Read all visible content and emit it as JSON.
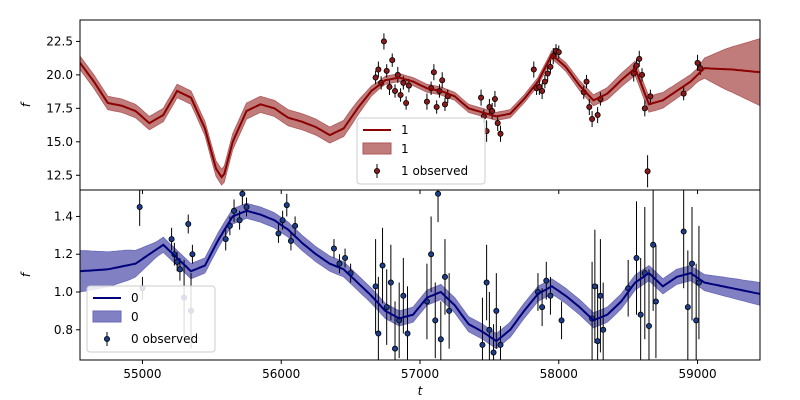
{
  "chart_data": [
    {
      "type": "line",
      "panel": "top",
      "ylabel": "f",
      "xlim": [
        54550,
        59450
      ],
      "ylim": [
        11.4,
        24.1
      ],
      "y_ticks": [
        "12.5",
        "15.0",
        "17.5",
        "20.0",
        "22.5"
      ],
      "legend_position": "lower-center",
      "legend": [
        "1",
        "1",
        "1 observed"
      ],
      "colors": {
        "line": "#8b0000",
        "band": "#b05a5a",
        "points": "#8b1a1a"
      },
      "mean": [
        [
          54550,
          20.9
        ],
        [
          54650,
          19.5
        ],
        [
          54750,
          17.9
        ],
        [
          54850,
          17.7
        ],
        [
          54950,
          17.3
        ],
        [
          55050,
          16.4
        ],
        [
          55150,
          17.0
        ],
        [
          55250,
          18.8
        ],
        [
          55350,
          18.3
        ],
        [
          55450,
          16.0
        ],
        [
          55530,
          13.0
        ],
        [
          55580,
          12.2
        ],
        [
          55650,
          15.0
        ],
        [
          55750,
          17.3
        ],
        [
          55850,
          17.8
        ],
        [
          55950,
          17.5
        ],
        [
          56050,
          16.8
        ],
        [
          56150,
          16.5
        ],
        [
          56250,
          16.1
        ],
        [
          56350,
          15.5
        ],
        [
          56450,
          16.0
        ],
        [
          56550,
          17.5
        ],
        [
          56650,
          18.8
        ],
        [
          56750,
          19.6
        ],
        [
          56850,
          19.8
        ],
        [
          56950,
          19.5
        ],
        [
          57050,
          19.0
        ],
        [
          57150,
          18.8
        ],
        [
          57250,
          18.4
        ],
        [
          57350,
          17.5
        ],
        [
          57450,
          17.2
        ],
        [
          57550,
          16.9
        ],
        [
          57650,
          17.1
        ],
        [
          57750,
          18.2
        ],
        [
          57850,
          19.5
        ],
        [
          57950,
          21.5
        ],
        [
          58050,
          20.6
        ],
        [
          58150,
          19.2
        ],
        [
          58250,
          18.1
        ],
        [
          58350,
          18.6
        ],
        [
          58450,
          19.6
        ],
        [
          58550,
          20.5
        ],
        [
          58650,
          17.8
        ],
        [
          58750,
          18.1
        ],
        [
          58850,
          18.8
        ],
        [
          58950,
          19.5
        ],
        [
          59050,
          20.5
        ],
        [
          59250,
          20.4
        ],
        [
          59450,
          20.2
        ]
      ],
      "band_half_width": [
        [
          54550,
          0.5
        ],
        [
          55400,
          0.5
        ],
        [
          55580,
          0.6
        ],
        [
          56500,
          0.6
        ],
        [
          56700,
          0.3
        ],
        [
          58000,
          0.3
        ],
        [
          58700,
          0.6
        ],
        [
          59000,
          0.5
        ],
        [
          59200,
          1.5
        ],
        [
          59450,
          2.5
        ]
      ],
      "observed": [
        [
          56680,
          19.8,
          0.5
        ],
        [
          56700,
          20.4,
          0.6
        ],
        [
          56720,
          19.4,
          0.5
        ],
        [
          56740,
          22.5,
          0.6
        ],
        [
          56760,
          20.3,
          0.5
        ],
        [
          56780,
          19.1,
          0.6
        ],
        [
          56800,
          21.1,
          0.5
        ],
        [
          56820,
          18.8,
          0.5
        ],
        [
          56840,
          20.0,
          0.6
        ],
        [
          56860,
          18.5,
          0.5
        ],
        [
          56880,
          19.4,
          0.5
        ],
        [
          56900,
          17.9,
          0.5
        ],
        [
          56920,
          19.2,
          0.5
        ],
        [
          57050,
          18.0,
          0.6
        ],
        [
          57080,
          19.0,
          0.5
        ],
        [
          57100,
          20.2,
          0.6
        ],
        [
          57120,
          17.6,
          0.5
        ],
        [
          57140,
          18.8,
          0.5
        ],
        [
          57160,
          19.6,
          0.6
        ],
        [
          57180,
          17.8,
          0.5
        ],
        [
          57200,
          18.4,
          0.5
        ],
        [
          57440,
          18.3,
          0.6
        ],
        [
          57460,
          16.9,
          0.5
        ],
        [
          57480,
          15.8,
          0.8
        ],
        [
          57500,
          17.6,
          0.6
        ],
        [
          57520,
          17.3,
          0.6
        ],
        [
          57540,
          18.2,
          0.6
        ],
        [
          57560,
          16.4,
          0.6
        ],
        [
          57580,
          15.6,
          0.6
        ],
        [
          57820,
          20.4,
          0.6
        ],
        [
          57840,
          19.0,
          0.5
        ],
        [
          57860,
          19.1,
          0.6
        ],
        [
          57880,
          18.8,
          0.6
        ],
        [
          57900,
          19.5,
          0.5
        ],
        [
          57920,
          20.1,
          0.6
        ],
        [
          57940,
          20.6,
          0.5
        ],
        [
          57960,
          21.4,
          0.6
        ],
        [
          57980,
          21.8,
          0.5
        ],
        [
          58000,
          21.7,
          0.5
        ],
        [
          58180,
          18.7,
          0.5
        ],
        [
          58200,
          19.5,
          0.5
        ],
        [
          58220,
          17.6,
          0.6
        ],
        [
          58240,
          16.7,
          0.6
        ],
        [
          58280,
          17.0,
          0.6
        ],
        [
          58300,
          18.2,
          0.5
        ],
        [
          58540,
          20.1,
          0.6
        ],
        [
          58560,
          20.7,
          0.5
        ],
        [
          58580,
          21.2,
          0.6
        ],
        [
          58600,
          20.0,
          0.5
        ],
        [
          58620,
          17.5,
          0.6
        ],
        [
          58640,
          12.8,
          1.2
        ],
        [
          58660,
          18.4,
          0.5
        ],
        [
          58900,
          18.6,
          0.5
        ],
        [
          59000,
          20.9,
          0.6
        ],
        [
          59020,
          20.5,
          0.5
        ]
      ]
    },
    {
      "type": "line",
      "panel": "bottom",
      "xlabel": "t",
      "ylabel": "f",
      "xlim": [
        54550,
        59450
      ],
      "ylim": [
        0.64,
        1.54
      ],
      "x_ticks": [
        "55000",
        "56000",
        "57000",
        "58000",
        "59000"
      ],
      "y_ticks": [
        "0.8",
        "1.0",
        "1.2",
        "1.4"
      ],
      "legend_position": "lower-left",
      "legend": [
        "0",
        "0",
        "0 observed"
      ],
      "colors": {
        "line": "#00007b",
        "band": "#6a6ab8",
        "points": "#1c3d8c"
      },
      "mean": [
        [
          54550,
          1.11
        ],
        [
          54750,
          1.12
        ],
        [
          54950,
          1.15
        ],
        [
          55050,
          1.2
        ],
        [
          55150,
          1.25
        ],
        [
          55250,
          1.18
        ],
        [
          55350,
          1.11
        ],
        [
          55450,
          1.14
        ],
        [
          55550,
          1.28
        ],
        [
          55650,
          1.4
        ],
        [
          55750,
          1.43
        ],
        [
          55850,
          1.41
        ],
        [
          55950,
          1.38
        ],
        [
          56050,
          1.33
        ],
        [
          56150,
          1.26
        ],
        [
          56250,
          1.2
        ],
        [
          56350,
          1.15
        ],
        [
          56450,
          1.12
        ],
        [
          56550,
          1.05
        ],
        [
          56650,
          0.98
        ],
        [
          56750,
          0.9
        ],
        [
          56850,
          0.86
        ],
        [
          56950,
          0.88
        ],
        [
          57050,
          0.97
        ],
        [
          57150,
          1.0
        ],
        [
          57250,
          0.93
        ],
        [
          57350,
          0.83
        ],
        [
          57450,
          0.79
        ],
        [
          57550,
          0.74
        ],
        [
          57650,
          0.8
        ],
        [
          57750,
          0.9
        ],
        [
          57850,
          0.99
        ],
        [
          57950,
          1.03
        ],
        [
          58050,
          0.98
        ],
        [
          58150,
          0.92
        ],
        [
          58250,
          0.85
        ],
        [
          58350,
          0.88
        ],
        [
          58450,
          0.95
        ],
        [
          58550,
          1.05
        ],
        [
          58650,
          1.1
        ],
        [
          58750,
          1.03
        ],
        [
          58850,
          1.08
        ],
        [
          58950,
          1.1
        ],
        [
          59050,
          1.05
        ],
        [
          59250,
          1.02
        ],
        [
          59450,
          0.99
        ]
      ],
      "band_half_width": [
        [
          54550,
          0.11
        ],
        [
          54900,
          0.08
        ],
        [
          55100,
          0.04
        ],
        [
          56600,
          0.04
        ],
        [
          59000,
          0.04
        ],
        [
          59200,
          0.05
        ],
        [
          59450,
          0.06
        ]
      ],
      "observed": [
        [
          54980,
          1.45,
          0.1
        ],
        [
          55000,
          1.02,
          0.06
        ],
        [
          55210,
          1.28,
          0.06
        ],
        [
          55230,
          1.2,
          0.06
        ],
        [
          55250,
          1.16,
          0.05
        ],
        [
          55270,
          1.12,
          0.06
        ],
        [
          55300,
          0.97,
          0.2
        ],
        [
          55330,
          1.36,
          0.05
        ],
        [
          55350,
          0.9,
          0.2
        ],
        [
          55360,
          1.2,
          0.05
        ],
        [
          55600,
          1.28,
          0.06
        ],
        [
          55630,
          1.35,
          0.05
        ],
        [
          55660,
          1.43,
          0.06
        ],
        [
          55700,
          1.38,
          0.05
        ],
        [
          55720,
          1.52,
          0.06
        ],
        [
          55750,
          1.45,
          0.05
        ],
        [
          55980,
          1.31,
          0.05
        ],
        [
          56010,
          1.38,
          0.05
        ],
        [
          56040,
          1.46,
          0.06
        ],
        [
          56070,
          1.27,
          0.05
        ],
        [
          56100,
          1.35,
          0.05
        ],
        [
          56380,
          1.23,
          0.05
        ],
        [
          56420,
          1.15,
          0.05
        ],
        [
          56460,
          1.18,
          0.05
        ],
        [
          56500,
          1.1,
          0.05
        ],
        [
          56680,
          1.03,
          0.25
        ],
        [
          56700,
          0.78,
          0.3
        ],
        [
          56730,
          1.14,
          0.2
        ],
        [
          56760,
          0.92,
          0.2
        ],
        [
          56790,
          1.05,
          0.2
        ],
        [
          56820,
          0.7,
          0.25
        ],
        [
          56850,
          0.85,
          0.2
        ],
        [
          56880,
          0.98,
          0.2
        ],
        [
          56910,
          0.78,
          0.25
        ],
        [
          57050,
          0.95,
          0.2
        ],
        [
          57080,
          1.2,
          0.2
        ],
        [
          57110,
          0.85,
          0.2
        ],
        [
          57130,
          1.52,
          0.15
        ],
        [
          57150,
          0.75,
          0.2
        ],
        [
          57180,
          1.08,
          0.2
        ],
        [
          57210,
          0.9,
          0.2
        ],
        [
          57450,
          0.72,
          0.25
        ],
        [
          57480,
          1.05,
          0.2
        ],
        [
          57500,
          0.8,
          0.2
        ],
        [
          57530,
          0.68,
          0.15
        ],
        [
          57550,
          0.9,
          0.2
        ],
        [
          57580,
          0.72,
          0.1
        ],
        [
          57850,
          1.0,
          0.1
        ],
        [
          57880,
          0.92,
          0.1
        ],
        [
          57910,
          1.06,
          0.1
        ],
        [
          57940,
          0.98,
          0.1
        ],
        [
          58020,
          0.85,
          0.1
        ],
        [
          58240,
          0.86,
          0.3
        ],
        [
          58260,
          1.03,
          0.3
        ],
        [
          58280,
          0.74,
          0.3
        ],
        [
          58300,
          0.98,
          0.3
        ],
        [
          58320,
          0.8,
          0.25
        ],
        [
          58500,
          1.02,
          0.15
        ],
        [
          58560,
          1.18,
          0.3
        ],
        [
          58590,
          0.88,
          0.3
        ],
        [
          58620,
          1.1,
          0.35
        ],
        [
          58650,
          0.82,
          0.3
        ],
        [
          58680,
          1.25,
          0.35
        ],
        [
          58700,
          0.95,
          0.3
        ],
        [
          58900,
          1.32,
          0.3
        ],
        [
          58930,
          0.92,
          0.3
        ],
        [
          58960,
          1.15,
          0.3
        ],
        [
          58990,
          0.85,
          0.3
        ],
        [
          59010,
          1.05,
          0.3
        ]
      ]
    }
  ]
}
